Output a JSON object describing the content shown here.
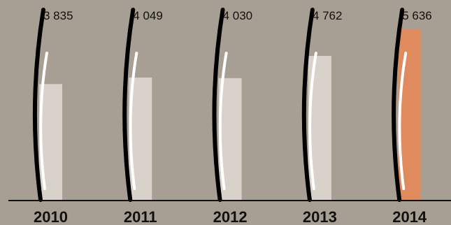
{
  "chart_data": {
    "type": "bar",
    "categories": [
      "2010",
      "2011",
      "2012",
      "2013",
      "2014"
    ],
    "values": [
      3835,
      4049,
      4030,
      4762,
      5636
    ],
    "value_labels": [
      "3 835",
      "4 049",
      "4 030",
      "4 762",
      "5 636"
    ],
    "ylim": [
      0,
      5636
    ],
    "grid": false,
    "legend": "none",
    "colors": {
      "background": "#a79f94",
      "bar": "#d9d2cb",
      "bar_highlight": "#e08b5e",
      "highlight_category": "2014",
      "axis": "#111111",
      "text": "#111111"
    }
  }
}
